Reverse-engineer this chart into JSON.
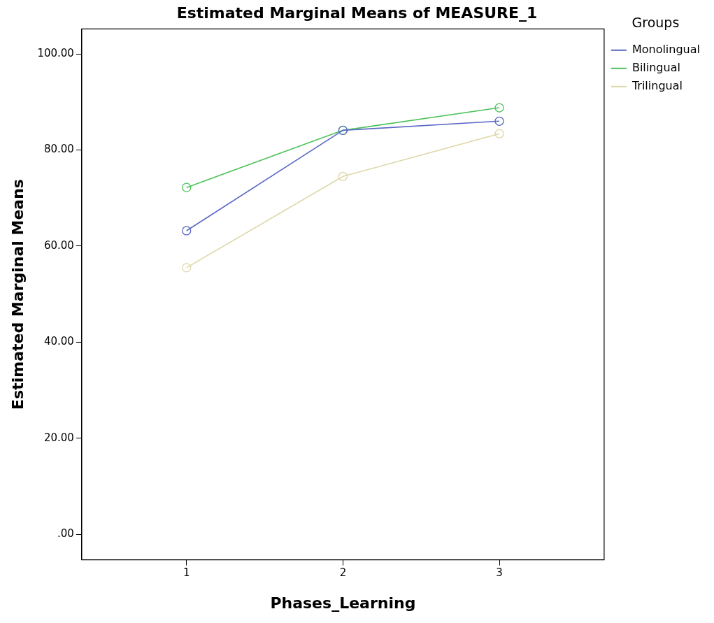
{
  "chart_data": {
    "type": "line",
    "title": "Estimated Marginal Means of MEASURE_1",
    "xlabel": "Phases_Learning",
    "ylabel": "Estimated Marginal Means",
    "legend_title": "Groups",
    "x": [
      1,
      2,
      3
    ],
    "xlim": [
      0.33,
      3.67
    ],
    "xticks": [
      1,
      2,
      3
    ],
    "ylim": [
      -5.3,
      105.2
    ],
    "yticks": [
      {
        "value": 0,
        "label": ".00"
      },
      {
        "value": 20,
        "label": "20.00"
      },
      {
        "value": 40,
        "label": "40.00"
      },
      {
        "value": 60,
        "label": "60.00"
      },
      {
        "value": 80,
        "label": "80.00"
      },
      {
        "value": 100,
        "label": "100.00"
      }
    ],
    "grid": false,
    "legend": "top right",
    "marker": "circle",
    "line_style": "solid",
    "series": [
      {
        "name": "Monolingual",
        "color": "#5a68c4",
        "values": [
          63.2,
          84.1,
          86.0
        ]
      },
      {
        "name": "Bilingual",
        "color": "#4cc25a",
        "values": [
          72.2,
          84.1,
          88.8
        ]
      },
      {
        "name": "Trilingual",
        "color": "#ddd6a6",
        "values": [
          55.5,
          74.5,
          83.4
        ]
      }
    ]
  }
}
